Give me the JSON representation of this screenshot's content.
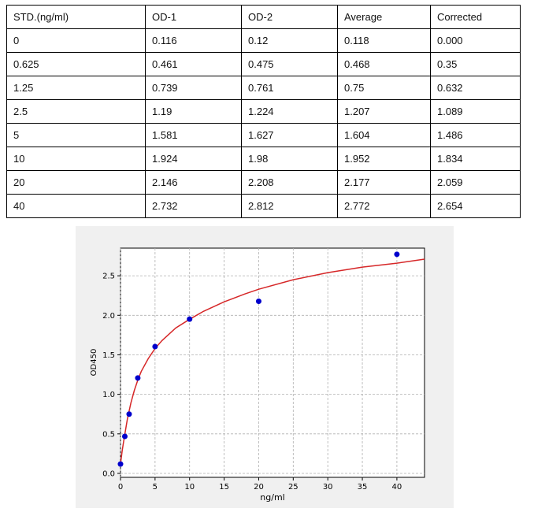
{
  "table": {
    "headers": [
      "STD.(ng/ml)",
      "OD-1",
      "OD-2",
      "Average",
      "Corrected"
    ],
    "rows": [
      [
        "0",
        "0.116",
        "0.12",
        "0.118",
        "0.000"
      ],
      [
        "0.625",
        "0.461",
        "0.475",
        "0.468",
        "0.35"
      ],
      [
        "1.25",
        "0.739",
        "0.761",
        "0.75",
        "0.632"
      ],
      [
        "2.5",
        "1.19",
        "1.224",
        "1.207",
        "1.089"
      ],
      [
        "5",
        "1.581",
        "1.627",
        "1.604",
        "1.486"
      ],
      [
        "10",
        "1.924",
        "1.98",
        "1.952",
        "1.834"
      ],
      [
        "20",
        "2.146",
        "2.208",
        "2.177",
        "2.059"
      ],
      [
        "40",
        "2.732",
        "2.812",
        "2.772",
        "2.654"
      ]
    ]
  },
  "chart_data": {
    "type": "scatter",
    "title": "",
    "xlabel": "ng/ml",
    "ylabel": "OD450",
    "xlim": [
      0,
      44
    ],
    "ylim": [
      -0.05,
      2.85
    ],
    "xticks": [
      0,
      5,
      10,
      15,
      20,
      25,
      30,
      35,
      40
    ],
    "yticks": [
      0.0,
      0.5,
      1.0,
      1.5,
      2.0,
      2.5
    ],
    "ytick_labels": [
      "0.0",
      "0.5",
      "1.0",
      "1.5",
      "2.0",
      "2.5"
    ],
    "grid": true,
    "points": {
      "x": [
        0,
        0.625,
        1.25,
        2.5,
        5,
        10,
        20,
        40
      ],
      "y": [
        0.118,
        0.468,
        0.75,
        1.207,
        1.604,
        1.952,
        2.177,
        2.772
      ],
      "color": "#0000cc"
    },
    "fit_curve": {
      "x": [
        0,
        0.25,
        0.5,
        1,
        1.5,
        2,
        2.5,
        3,
        4,
        5,
        6,
        8,
        10,
        12,
        15,
        18,
        20,
        25,
        30,
        35,
        40,
        44
      ],
      "y": [
        0.118,
        0.29,
        0.43,
        0.69,
        0.89,
        1.05,
        1.18,
        1.29,
        1.45,
        1.58,
        1.68,
        1.84,
        1.95,
        2.05,
        2.17,
        2.27,
        2.33,
        2.45,
        2.54,
        2.61,
        2.66,
        2.71
      ],
      "color": "#d62728"
    },
    "colors": {
      "axes": "#000000",
      "grid": "#b0b0b0",
      "panel_bg": "#f0f0f0",
      "plot_bg": "#ffffff"
    }
  }
}
